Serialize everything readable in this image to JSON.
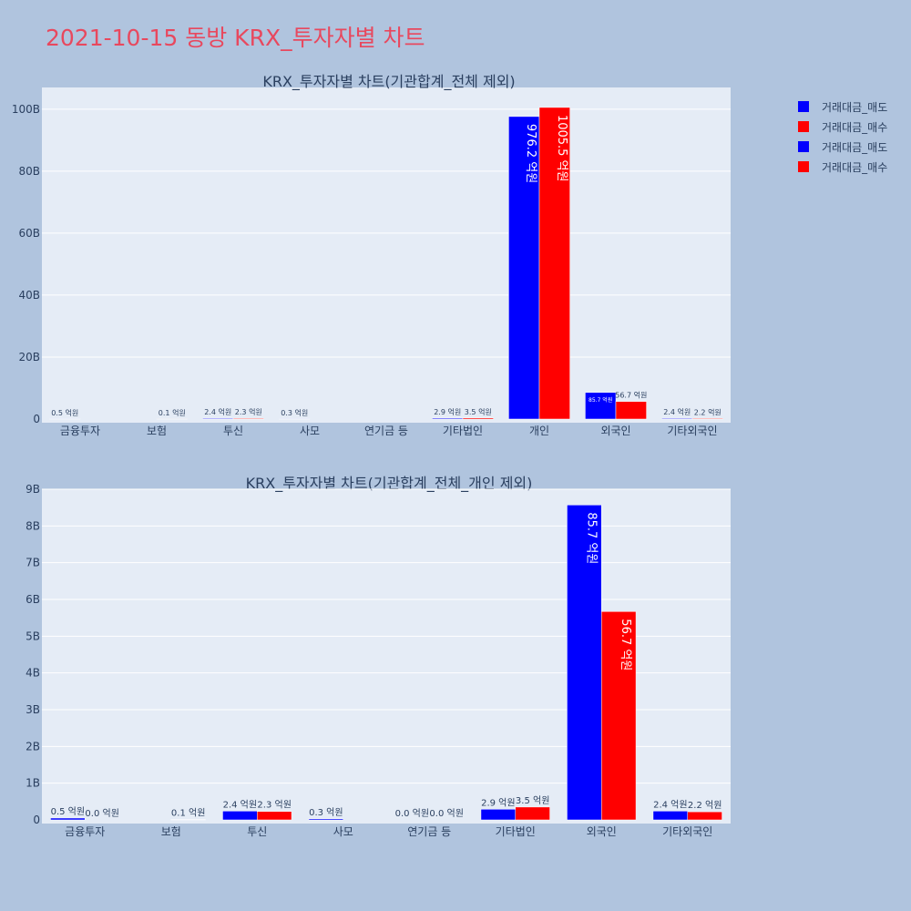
{
  "page_title": "2021-10-15 동방 KRX_투자자별 차트",
  "legend": [
    {
      "label": "거래대금_매도",
      "color": "#0000ff"
    },
    {
      "label": "거래대금_매수",
      "color": "#ff0000"
    },
    {
      "label": "거래대금_매도",
      "color": "#0000ff"
    },
    {
      "label": "거래대금_매수",
      "color": "#ff0000"
    }
  ],
  "chart_data": [
    {
      "type": "bar",
      "title": "KRX_투자자별 차트(기관합계_전체 제외)",
      "categories": [
        "금융투자",
        "보험",
        "투신",
        "사모",
        "연기금 등",
        "기타법인",
        "개인",
        "외국인",
        "기타외국인"
      ],
      "series": [
        {
          "name": "거래대금_매도",
          "color": "#0000ff",
          "values": [
            0.05,
            0,
            0.24,
            0.03,
            0,
            0.29,
            97.62,
            8.57,
            0.24
          ],
          "labels": [
            "0.5 억원",
            "",
            "2.4 억원",
            "0.3 억원",
            "",
            "2.9 억원",
            "976.2 억원",
            "85.7 억원",
            "2.4 억원"
          ]
        },
        {
          "name": "거래대금_매수",
          "color": "#ff0000",
          "values": [
            0,
            0.01,
            0.23,
            0,
            0,
            0.35,
            100.55,
            5.67,
            0.22
          ],
          "labels": [
            "",
            "0.1 억원",
            "2.3 억원",
            "",
            "",
            "3.5 억원",
            "1005.5 억원",
            "56.7 억원",
            "2.2 억원"
          ]
        }
      ],
      "yticks": [
        "0",
        "20B",
        "40B",
        "60B",
        "80B",
        "100B"
      ],
      "ylim": [
        0,
        107
      ],
      "unit": "B"
    },
    {
      "type": "bar",
      "title": "KRX_투자자별 차트(기관합계_전체_개인 제외)",
      "categories": [
        "금융투자",
        "보험",
        "투신",
        "사모",
        "연기금 등",
        "기타법인",
        "외국인",
        "기타외국인"
      ],
      "series": [
        {
          "name": "거래대금_매도",
          "color": "#0000ff",
          "values": [
            0.05,
            0,
            0.24,
            0.03,
            0,
            0.29,
            8.57,
            0.24
          ],
          "labels": [
            "0.5 억원",
            "",
            "2.4 억원",
            "0.3 억원",
            "0.0 억원",
            "2.9 억원",
            "85.7 억원",
            "2.4 억원"
          ]
        },
        {
          "name": "거래대금_매수",
          "color": "#ff0000",
          "values": [
            0,
            0.01,
            0.23,
            0,
            0,
            0.35,
            5.67,
            0.22
          ],
          "labels": [
            "0.0 억원",
            "0.1 억원",
            "2.3 억원",
            "",
            "0.0 억원",
            "3.5 억원",
            "56.7 억원",
            "2.2 억원"
          ]
        }
      ],
      "yticks": [
        "0",
        "1B",
        "2B",
        "3B",
        "4B",
        "5B",
        "6B",
        "7B",
        "8B",
        "9B"
      ],
      "ylim": [
        0,
        9.0
      ],
      "unit": "B"
    }
  ]
}
